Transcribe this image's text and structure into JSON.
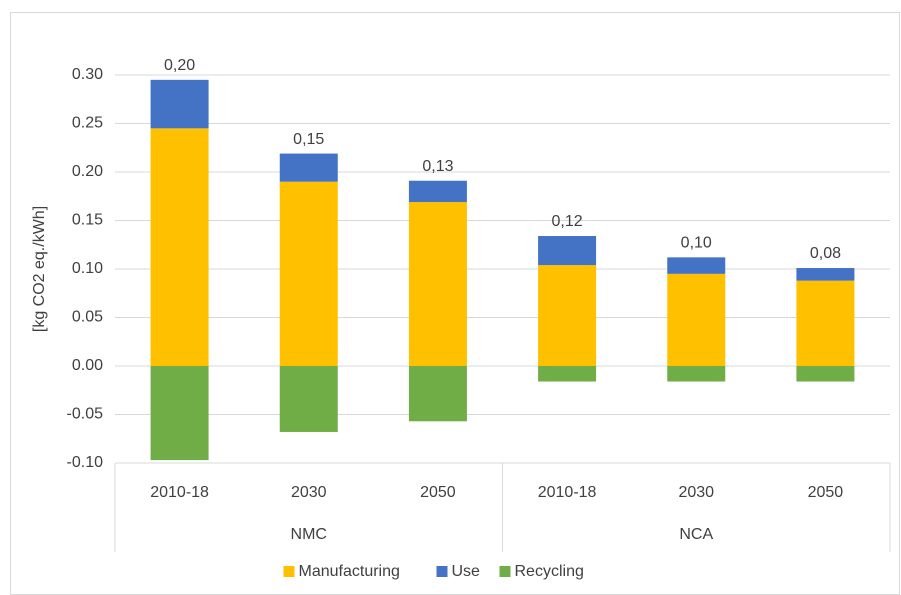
{
  "chart_data": {
    "type": "stacked_bar",
    "y_label": "[kg CO2 eq./kWh]",
    "groups": [
      {
        "name": "NMC",
        "categories": [
          "2010-18",
          "2030",
          "2050"
        ]
      },
      {
        "name": "NCA",
        "categories": [
          "2010-18",
          "2030",
          "2050"
        ]
      }
    ],
    "series": [
      {
        "name": "Manufacturing",
        "color": "#ffc000",
        "values": [
          0.245,
          0.19,
          0.169,
          0.104,
          0.095,
          0.088
        ]
      },
      {
        "name": "Use",
        "color": "#4472c4",
        "values": [
          0.05,
          0.029,
          0.022,
          0.03,
          0.017,
          0.013
        ]
      },
      {
        "name": "Recycling",
        "color": "#70ad47",
        "values": [
          -0.097,
          -0.068,
          -0.057,
          -0.016,
          -0.016,
          -0.016
        ]
      }
    ],
    "totals": {
      "values": [
        0.2,
        0.15,
        0.13,
        0.12,
        0.1,
        0.08
      ],
      "value_labels": [
        "0,20",
        "0,15",
        "0,13",
        "0,12",
        "0,10",
        "0,08"
      ]
    },
    "ylim": [
      -0.1,
      0.3
    ],
    "yticks": [
      {
        "value": -0.1,
        "label": "-0.10"
      },
      {
        "value": -0.05,
        "label": "-0.05"
      },
      {
        "value": 0,
        "label": "0.00"
      },
      {
        "value": 0.05,
        "label": "0.05"
      },
      {
        "value": 0.1,
        "label": "0.10"
      },
      {
        "value": 0.15,
        "label": "0.15"
      },
      {
        "value": 0.2,
        "label": "0.20"
      },
      {
        "value": 0.25,
        "label": "0.25"
      },
      {
        "value": 0.3,
        "label": "0.30"
      }
    ],
    "grid": true
  }
}
